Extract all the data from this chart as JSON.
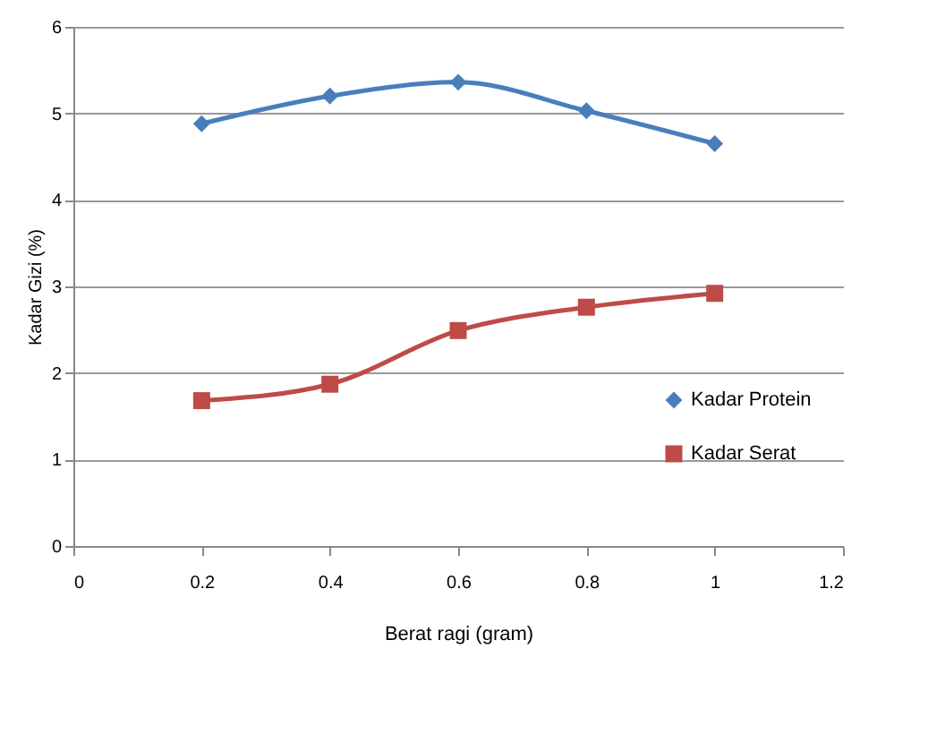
{
  "chart_data": {
    "type": "line",
    "xlabel": "Berat ragi  (gram)",
    "ylabel": "Kadar Gizi (%)",
    "x": [
      0.2,
      0.4,
      0.6,
      0.8,
      1
    ],
    "series": [
      {
        "name": "Kadar Protein",
        "color": "#4a7ebb",
        "marker": "diamond",
        "values": [
          4.88,
          5.2,
          5.36,
          5.03,
          4.65
        ]
      },
      {
        "name": "Kadar Serat",
        "color": "#be4b48",
        "marker": "square",
        "values": [
          1.68,
          1.87,
          2.49,
          2.76,
          2.92
        ]
      }
    ],
    "xlim": [
      0,
      1.2
    ],
    "xticks": [
      0,
      0.2,
      0.4,
      0.6,
      0.8,
      1,
      1.2
    ],
    "ylim": [
      0,
      6
    ],
    "yticks": [
      0,
      1,
      2,
      3,
      4,
      5,
      6
    ],
    "grid": "y",
    "legend": "right"
  }
}
